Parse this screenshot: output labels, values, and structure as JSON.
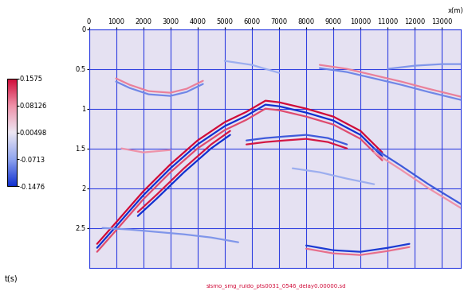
{
  "chart_data": {
    "type": "seismic_section",
    "x_label": "x(m)",
    "y_label": "t(s)",
    "caption": "sismo_smg_ruido_pts0031_0546_delay0.00000.sd",
    "xlim": [
      0,
      13700
    ],
    "xticks": [
      0,
      1000,
      2000,
      3000,
      4000,
      5000,
      6000,
      7000,
      8000,
      9000,
      10000,
      11000,
      12000,
      13000
    ],
    "ylim": [
      3.0,
      0
    ],
    "yticks": [
      0,
      0.5,
      1,
      1.5,
      2,
      2.5
    ],
    "grid": true,
    "colorbar": {
      "range": [
        -0.1476,
        0.1575
      ],
      "ticks": [
        0.1575,
        0.08126,
        0.00498,
        -0.0713,
        -0.1476
      ]
    },
    "events": [
      {
        "x": [
          300,
          1000,
          2000,
          3000,
          4000,
          5000,
          5800,
          6500,
          7000,
          8000,
          9000,
          10000,
          10800
        ],
        "t": [
          2.7,
          2.43,
          2.04,
          1.7,
          1.4,
          1.17,
          1.04,
          0.9,
          0.92,
          1.0,
          1.1,
          1.28,
          1.55
        ],
        "amplitude": 0.1575
      },
      {
        "x": [
          300,
          1000,
          2000,
          3000,
          4000,
          5000,
          5800,
          6500,
          7000,
          8000,
          9000,
          10000,
          10800
        ],
        "t": [
          2.75,
          2.48,
          2.09,
          1.75,
          1.45,
          1.22,
          1.09,
          0.95,
          0.97,
          1.05,
          1.15,
          1.33,
          1.6
        ],
        "amplitude": -0.1476
      },
      {
        "x": [
          300,
          1000,
          2000,
          3000,
          4000,
          5000,
          5800,
          6500,
          7000,
          8000,
          9000,
          10000,
          10800
        ],
        "t": [
          2.8,
          2.53,
          2.14,
          1.8,
          1.5,
          1.27,
          1.14,
          1.0,
          1.02,
          1.1,
          1.2,
          1.38,
          1.65
        ],
        "amplitude": 0.12
      },
      {
        "x": [
          1800,
          2500,
          3500,
          4500,
          5200
        ],
        "t": [
          2.3,
          2.08,
          1.75,
          1.45,
          1.28
        ],
        "amplitude": 0.15
      },
      {
        "x": [
          1800,
          2500,
          3500,
          4500,
          5200
        ],
        "t": [
          2.35,
          2.13,
          1.8,
          1.5,
          1.33
        ],
        "amplitude": -0.147
      },
      {
        "x": [
          5800,
          6500,
          7200,
          8000,
          8800,
          9500
        ],
        "t": [
          1.45,
          1.42,
          1.4,
          1.38,
          1.42,
          1.5
        ],
        "amplitude": 0.15
      },
      {
        "x": [
          5800,
          6500,
          7200,
          8000,
          8800,
          9500
        ],
        "t": [
          1.4,
          1.37,
          1.35,
          1.33,
          1.37,
          1.45
        ],
        "amplitude": -0.12
      },
      {
        "x": [
          1000,
          1500,
          2200,
          3000,
          3600,
          4200
        ],
        "t": [
          0.62,
          0.7,
          0.78,
          0.8,
          0.75,
          0.65
        ],
        "amplitude": 0.09
      },
      {
        "x": [
          1000,
          1500,
          2200,
          3000,
          3600,
          4200
        ],
        "t": [
          0.66,
          0.74,
          0.82,
          0.84,
          0.79,
          0.69
        ],
        "amplitude": -0.09
      },
      {
        "x": [
          8500,
          9500,
          10500,
          11500,
          12500,
          13700
        ],
        "t": [
          0.45,
          0.5,
          0.58,
          0.66,
          0.75,
          0.85
        ],
        "amplitude": 0.09
      },
      {
        "x": [
          8500,
          9500,
          10500,
          11500,
          12500,
          13700
        ],
        "t": [
          0.49,
          0.54,
          0.62,
          0.7,
          0.79,
          0.89
        ],
        "amplitude": -0.09
      },
      {
        "x": [
          11000,
          12000,
          13000,
          13700
        ],
        "t": [
          0.5,
          0.46,
          0.44,
          0.44
        ],
        "amplitude": -0.08
      },
      {
        "x": [
          10500,
          11500,
          12500,
          13700
        ],
        "t": [
          1.5,
          1.72,
          1.95,
          2.2
        ],
        "amplitude": -0.12
      },
      {
        "x": [
          10500,
          11500,
          12500,
          13700
        ],
        "t": [
          1.55,
          1.77,
          2.0,
          2.25
        ],
        "amplitude": 0.08
      },
      {
        "x": [
          1200,
          2000,
          3000
        ],
        "t": [
          1.5,
          1.55,
          1.52
        ],
        "amplitude": 0.08
      },
      {
        "x": [
          500,
          1500,
          2500,
          3500,
          4500,
          5500
        ],
        "t": [
          2.5,
          2.52,
          2.55,
          2.58,
          2.62,
          2.68
        ],
        "amplitude": -0.08
      },
      {
        "x": [
          8000,
          9000,
          10000,
          11000,
          11800
        ],
        "t": [
          2.72,
          2.78,
          2.8,
          2.75,
          2.7
        ],
        "amplitude": -0.14
      },
      {
        "x": [
          8000,
          9000,
          10000,
          11000,
          11800
        ],
        "t": [
          2.76,
          2.82,
          2.84,
          2.79,
          2.74
        ],
        "amplitude": 0.1
      },
      {
        "x": [
          7500,
          8500,
          9500,
          10500
        ],
        "t": [
          1.75,
          1.8,
          1.88,
          1.95
        ],
        "amplitude": -0.06
      },
      {
        "x": [
          5000,
          6000,
          7000
        ],
        "t": [
          0.4,
          0.45,
          0.55
        ],
        "amplitude": -0.06
      }
    ]
  }
}
